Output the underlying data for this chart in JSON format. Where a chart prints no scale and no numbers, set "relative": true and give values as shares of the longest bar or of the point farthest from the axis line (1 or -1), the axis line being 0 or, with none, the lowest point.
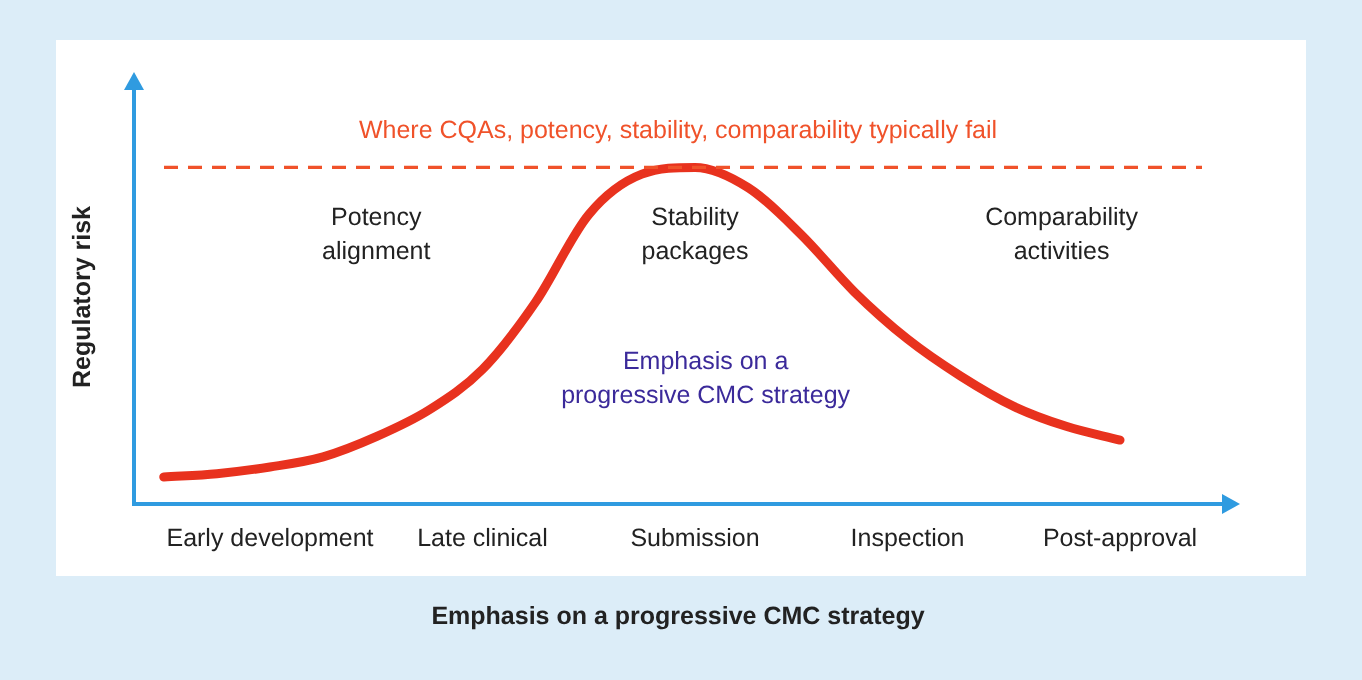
{
  "chart_data": {
    "type": "line",
    "relative": true,
    "xlabel": "Emphasis on a progressive CMC strategy",
    "ylabel": "Regulatory risk",
    "categories": [
      null,
      null,
      "Early development",
      null,
      null,
      null,
      "Late clinical",
      null,
      null,
      null,
      "Submission",
      null,
      null,
      null,
      "Inspection",
      null,
      null,
      null,
      "Post-approval",
      null
    ],
    "series": [
      {
        "color": "#e8321e",
        "values": [
          0.08,
          0.09,
          0.11,
          0.14,
          0.2,
          0.28,
          0.4,
          0.6,
          0.86,
          0.98,
          1.0,
          0.94,
          0.8,
          0.63,
          0.49,
          0.38,
          0.29,
          0.23,
          0.19,
          null
        ]
      }
    ],
    "ref_lines": [
      {
        "axis": "y",
        "value": 1.0,
        "label": "Where CQAs, potency, stability, comparability typically fail",
        "color": "#f0522a",
        "line_style": "dashed"
      }
    ],
    "annotations": [
      "Potency alignment",
      "Stability packages",
      "Comparability activities",
      "Emphasis on a progressive CMC strategy"
    ],
    "grid": false,
    "legend": false,
    "marker": "none",
    "line_style": "solid"
  }
}
